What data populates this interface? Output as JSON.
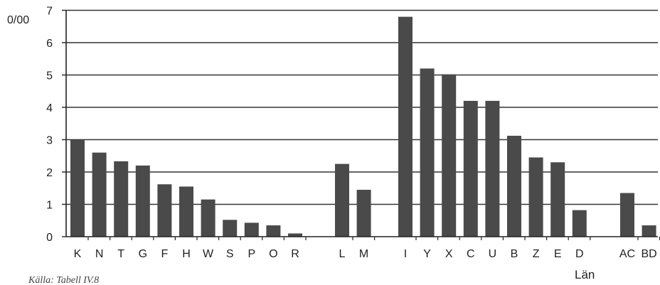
{
  "chart_data": {
    "type": "bar",
    "unit_label": "0/00",
    "xlabel": "Län",
    "source_note": "Källa: Tabell IV.8",
    "ylim": [
      0,
      7
    ],
    "yticks": [
      "0",
      "1",
      "2",
      "3",
      "4",
      "5",
      "6",
      "7"
    ],
    "grid": true,
    "bar_color": "#4a4a4a",
    "groups": [
      {
        "categories": [
          "K",
          "N",
          "T",
          "G",
          "F",
          "H",
          "W",
          "S",
          "P",
          "O",
          "R"
        ],
        "values": [
          3.0,
          2.6,
          2.33,
          2.2,
          1.62,
          1.55,
          1.15,
          0.52,
          0.43,
          0.35,
          0.1
        ]
      },
      {
        "categories": [
          "L",
          "M"
        ],
        "values": [
          2.25,
          1.45
        ]
      },
      {
        "categories": [
          "I",
          "Y",
          "X",
          "C",
          "U",
          "B",
          "Z",
          "E",
          "D"
        ],
        "values": [
          6.8,
          5.2,
          5.02,
          4.2,
          4.2,
          3.12,
          2.45,
          2.3,
          0.82
        ]
      },
      {
        "categories": [
          "AC",
          "BD"
        ],
        "values": [
          1.35,
          0.35
        ]
      }
    ]
  }
}
